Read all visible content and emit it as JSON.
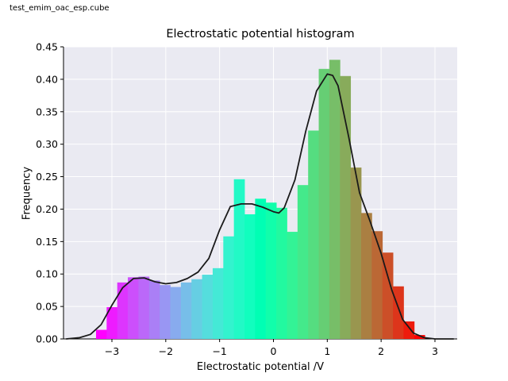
{
  "window": {
    "suptitle": "test_emim_oac_esp.cube"
  },
  "chart_data": {
    "type": "bar",
    "title": "Electrostatic potential histogram",
    "xlabel": "Electrostatic potential /V",
    "ylabel": "Frequency",
    "xlim": [
      -3.9,
      3.4
    ],
    "ylim": [
      0,
      0.45
    ],
    "xticks": [
      "−3",
      "−2",
      "−1",
      "0",
      "1",
      "2",
      "3"
    ],
    "xtick_values": [
      -3,
      -2,
      -1,
      0,
      1,
      2,
      3
    ],
    "yticks": [
      "0.00",
      "0.05",
      "0.10",
      "0.15",
      "0.20",
      "0.25",
      "0.30",
      "0.35",
      "0.40",
      "0.45"
    ],
    "ytick_values": [
      0,
      0.05,
      0.1,
      0.15,
      0.2,
      0.25,
      0.3,
      0.35,
      0.4,
      0.45
    ],
    "grid": true,
    "background": "#eaeaf2",
    "bin_start": -3.295,
    "bin_end": 2.811,
    "values": [
      0.014,
      0.049,
      0.087,
      0.095,
      0.096,
      0.09,
      0.083,
      0.08,
      0.087,
      0.092,
      0.099,
      0.109,
      0.158,
      0.246,
      0.192,
      0.216,
      0.21,
      0.202,
      0.165,
      0.237,
      0.321,
      0.416,
      0.43,
      0.405,
      0.264,
      0.194,
      0.166,
      0.133,
      0.081,
      0.027,
      0.006
    ],
    "colormap": "rainbow",
    "kde": {
      "x": [
        -3.85,
        -3.6,
        -3.4,
        -3.2,
        -3.0,
        -2.8,
        -2.6,
        -2.4,
        -2.2,
        -2.0,
        -1.8,
        -1.6,
        -1.4,
        -1.2,
        -1.0,
        -0.8,
        -0.6,
        -0.4,
        -0.2,
        0.0,
        0.1,
        0.2,
        0.4,
        0.6,
        0.8,
        1.0,
        1.1,
        1.2,
        1.4,
        1.6,
        1.8,
        2.0,
        2.2,
        2.4,
        2.6,
        2.8,
        3.0,
        3.2,
        3.35
      ],
      "y": [
        0.0,
        0.002,
        0.007,
        0.022,
        0.052,
        0.079,
        0.093,
        0.094,
        0.088,
        0.085,
        0.087,
        0.093,
        0.103,
        0.124,
        0.168,
        0.204,
        0.208,
        0.208,
        0.203,
        0.196,
        0.194,
        0.202,
        0.245,
        0.32,
        0.382,
        0.408,
        0.406,
        0.39,
        0.31,
        0.225,
        0.18,
        0.132,
        0.075,
        0.03,
        0.009,
        0.002,
        0.0,
        0.0,
        0.0
      ],
      "color": "#1a1a1a"
    }
  }
}
